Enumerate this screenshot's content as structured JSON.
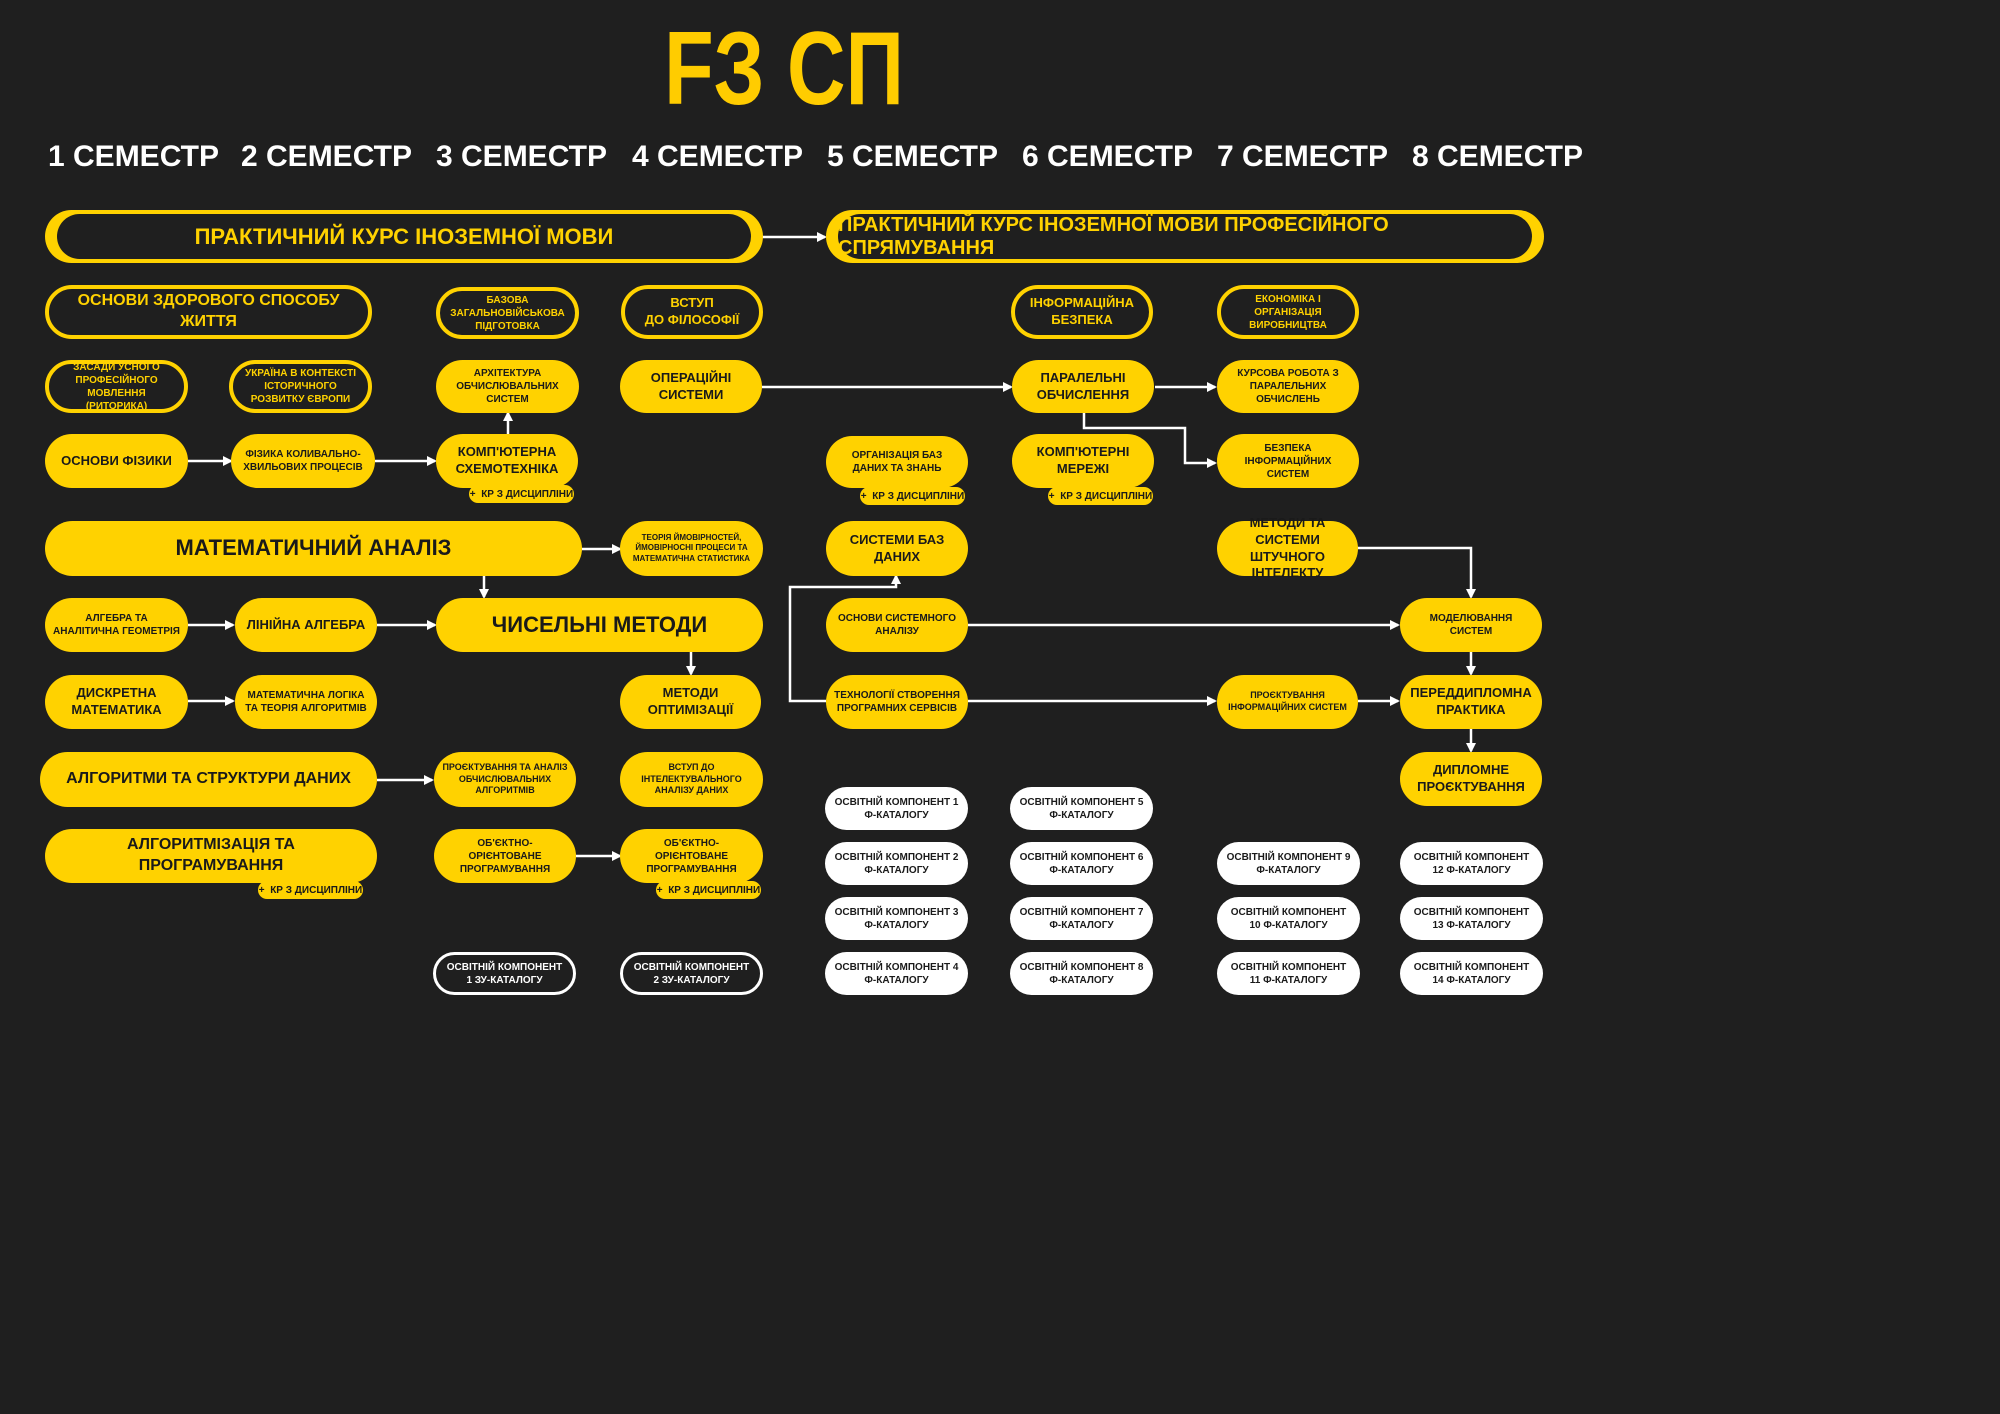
{
  "title": "FЗ СП",
  "semesters": [
    "1 СЕМЕСТР",
    "2 СЕМЕСТР",
    "3 СЕМЕСТР",
    "4 СЕМЕСТР",
    "5 СЕМЕСТР",
    "6 СЕМЕСТР",
    "7 СЕМЕСТР",
    "8 СЕМЕСТР"
  ],
  "kr_label": "КР З ДИСЦИПЛІНИ",
  "kr_plus": "+",
  "bands": {
    "foreign_language": "ПРАКТИЧНИЙ КУРС ІНОЗЕМНОЇ МОВИ",
    "foreign_language_prof": "ПРАКТИЧНИЙ КУРС ІНОЗЕМНОЇ МОВИ ПРОФЕСІЙНОГО СПРЯМУВАННЯ"
  },
  "nodes": {
    "healthy_life": "ОСНОВИ ЗДОРОВОГО СПОСОБУ ЖИТТЯ",
    "military": "БАЗОВА ЗАГАЛЬНОВІЙСЬКОВА ПІДГОТОВКА",
    "philosophy_1": "ВСТУП",
    "philosophy_2": "ДО ФІЛОСОФІЇ",
    "info_security": "ІНФОРМАЦІЙНА БЕЗПЕКА",
    "economics": "ЕКОНОМІКА І ОРГАНІЗАЦІЯ ВИРОБНИЦТВА",
    "rhetoric": "ЗАСАДИ УСНОГО ПРОФЕСІЙНОГО МОВЛЕННЯ (РИТОРИКА)",
    "ukraine_europe": "УКРАЇНА В КОНТЕКСТІ ІСТОРИЧНОГО РОЗВИТКУ ЄВРОПИ",
    "architecture": "АРХІТЕКТУРА ОБЧИСЛЮВАЛЬНИХ СИСТЕМ",
    "os": "ОПЕРАЦІЙНІ СИСТЕМИ",
    "parallel": "ПАРАЛЕЛЬНІ ОБЧИСЛЕННЯ",
    "parallel_kr": "КУРСОВА РОБОТА З ПАРАЛЕЛЬНИХ ОБЧИСЛЕНЬ",
    "physics_basics": "ОСНОВИ ФІЗИКИ",
    "wave_physics": "ФІЗИКА КОЛИВАЛЬНО-ХВИЛЬОВИХ ПРОЦЕСІВ",
    "circuitry": "КОМП'ЮТЕРНА СХЕМОТЕХНІКА",
    "knowledge_db": "ОРГАНІЗАЦІЯ БАЗ ДАНИХ ТА ЗНАНЬ",
    "networks": "КОМП'ЮТЕРНІ МЕРЕЖІ",
    "info_sys_security": "БЕЗПЕКА ІНФОРМАЦІЙНИХ СИСТЕМ",
    "math_analysis": "МАТЕМАТИЧНИЙ АНАЛІЗ",
    "probability": "ТЕОРІЯ ЙМОВІРНОСТЕЙ, ЙМОВІРНОСНІ ПРОЦЕСИ ТА МАТЕМАТИЧНА СТАТИСТИКА",
    "db_systems": "СИСТЕМИ БАЗ ДАНИХ",
    "ai_methods": "МЕТОДИ ТА СИСТЕМИ ШТУЧНОГО ІНТЕЛЕКТУ",
    "algebra_geometry": "АЛГЕБРА ТА АНАЛІТИЧНА ГЕОМЕТРІЯ",
    "linear_algebra": "ЛІНІЙНА АЛГЕБРА",
    "numerical": "ЧИСЕЛЬНІ МЕТОДИ",
    "system_analysis": "ОСНОВИ СИСТЕМНОГО АНАЛІЗУ",
    "modeling": "МОДЕЛЮВАННЯ СИСТЕМ",
    "discrete_math": "ДИСКРЕТНА МАТЕМАТИКА",
    "math_logic": "МАТЕМАТИЧНА ЛОГІКА ТА ТЕОРІЯ АЛГОРИТМІВ",
    "optimization": "МЕТОДИ ОПТИМІЗАЦІЇ",
    "software_services": "ТЕХНОЛОГІЇ СТВОРЕННЯ ПРОГРАМНИХ СЕРВІСІВ",
    "is_design": "ПРОЄКТУВАННЯ ІНФОРМАЦІЙНИХ СИСТЕМ",
    "pre_diploma": "ПЕРЕДДИПЛОМНА ПРАКТИКА",
    "algorithms_ds": "АЛГОРИТМИ ТА СТРУКТУРИ ДАНИХ",
    "alg_design": "ПРОЄКТУВАННЯ ТА АНАЛІЗ ОБЧИСЛЮВАЛЬНИХ АЛГОРИТМІВ",
    "data_mining": "ВСТУП ДО ІНТЕЛЕКТУВАЛЬНОГО АНАЛІЗУ ДАНИХ",
    "diploma": "ДИПЛОМНЕ ПРОЄКТУВАННЯ",
    "programming": "АЛГОРИТМІЗАЦІЯ ТА ПРОГРАМУВАННЯ",
    "oop_1": "ОБ'ЄКТНО-ОРІЄНТОВАНЕ ПРОГРАМУВАННЯ",
    "oop_2": "ОБ'ЄКТНО-ОРІЄНТОВАНЕ ПРОГРАМУВАННЯ"
  },
  "zu_catalog": [
    "ОСВІТНІЙ КОМПОНЕНТ 1 ЗУ-КАТАЛОГУ",
    "ОСВІТНІЙ КОМПОНЕНТ 2 ЗУ-КАТАЛОГУ"
  ],
  "f_catalog": [
    "ОСВІТНІЙ КОМПОНЕНТ 1 Ф-КАТАЛОГУ",
    "ОСВІТНІЙ КОМПОНЕНТ 2 Ф-КАТАЛОГУ",
    "ОСВІТНІЙ КОМПОНЕНТ 3 Ф-КАТАЛОГУ",
    "ОСВІТНІЙ КОМПОНЕНТ 4 Ф-КАТАЛОГУ",
    "ОСВІТНІЙ КОМПОНЕНТ 5 Ф-КАТАЛОГУ",
    "ОСВІТНІЙ КОМПОНЕНТ 6 Ф-КАТАЛОГУ",
    "ОСВІТНІЙ КОМПОНЕНТ 7 Ф-КАТАЛОГУ",
    "ОСВІТНІЙ КОМПОНЕНТ 8 Ф-КАТАЛОГУ",
    "ОСВІТНІЙ КОМПОНЕНТ 9 Ф-КАТАЛОГУ",
    "ОСВІТНІЙ КОМПОНЕНТ 10 Ф-КАТАЛОГУ",
    "ОСВІТНІЙ КОМПОНЕНТ 11 Ф-КАТАЛОГУ",
    "ОСВІТНІЙ КОМПОНЕНТ 12 Ф-КАТАЛОГУ",
    "ОСВІТНІЙ КОМПОНЕНТ 13 Ф-КАТАЛОГУ",
    "ОСВІТНІЙ КОМПОНЕНТ 14 Ф-КАТАЛОГУ"
  ],
  "colors": {
    "accent": "#ffd200",
    "background": "#1f1f1f",
    "text_dark": "#1a1a1a",
    "white": "#ffffff"
  },
  "edges": [
    [
      "foreign_language",
      "foreign_language_prof"
    ],
    [
      "physics_basics",
      "wave_physics"
    ],
    [
      "wave_physics",
      "circuitry"
    ],
    [
      "circuitry",
      "architecture"
    ],
    [
      "os",
      "parallel"
    ],
    [
      "parallel",
      "parallel_kr"
    ],
    [
      "parallel",
      "info_sys_security"
    ],
    [
      "math_analysis",
      "probability"
    ],
    [
      "math_analysis",
      "numerical"
    ],
    [
      "algebra_geometry",
      "linear_algebra"
    ],
    [
      "linear_algebra",
      "numerical"
    ],
    [
      "numerical",
      "optimization"
    ],
    [
      "discrete_math",
      "math_logic"
    ],
    [
      "algorithms_ds",
      "alg_design"
    ],
    [
      "oop_1",
      "oop_2"
    ],
    [
      "software_services",
      "db_systems"
    ],
    [
      "system_analysis",
      "modeling"
    ],
    [
      "ai_methods",
      "modeling"
    ],
    [
      "software_services",
      "is_design"
    ],
    [
      "is_design",
      "pre_diploma"
    ],
    [
      "modeling",
      "pre_diploma"
    ],
    [
      "pre_diploma",
      "diploma"
    ]
  ]
}
